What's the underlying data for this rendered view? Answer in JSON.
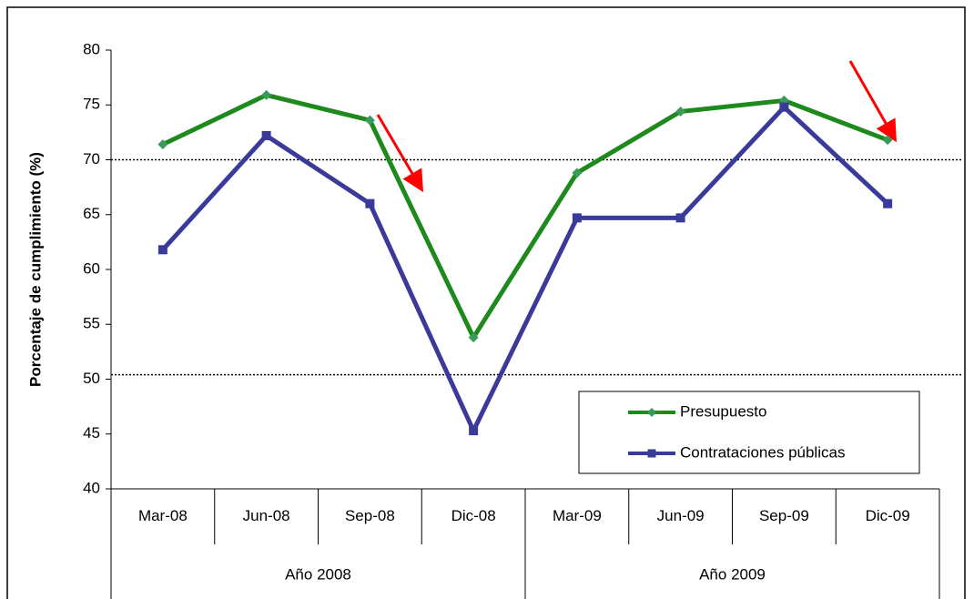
{
  "chart_data": {
    "type": "line",
    "y_label": "Porcentaje de cumplimiento (%)",
    "categories": [
      "Mar-08",
      "Jun-08",
      "Sep-08",
      "Dic-08",
      "Mar-09",
      "Jun-09",
      "Sep-09",
      "Dic-09"
    ],
    "groups": [
      {
        "name": "Año 2008",
        "count": 4
      },
      {
        "name": "Año 2009",
        "count": 4
      }
    ],
    "series": [
      {
        "name": "Presupuesto",
        "color": "#1e8a1e",
        "marker": "diamond",
        "marker_color": "#3a9a5a",
        "values": [
          71.4,
          75.9,
          73.6,
          53.8,
          68.8,
          74.4,
          75.4,
          71.8
        ]
      },
      {
        "name": "Contrataciones públicas",
        "color": "#3a3a9a",
        "marker": "square",
        "marker_color": "#3a3a9a",
        "values": [
          61.8,
          72.2,
          66.0,
          45.3,
          64.7,
          64.7,
          74.8,
          66.0
        ]
      }
    ],
    "reference_lines": [
      70,
      50.4
    ],
    "ylim": [
      40,
      80
    ],
    "yticks": [
      40,
      45,
      50,
      55,
      60,
      65,
      70,
      75,
      80
    ],
    "grid": false
  }
}
